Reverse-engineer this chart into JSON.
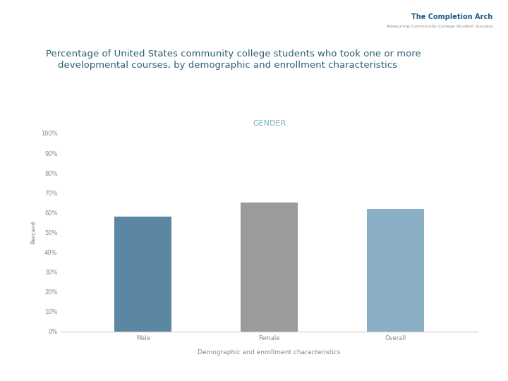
{
  "title": "GENDER",
  "title_color": "#7ab0c0",
  "categories": [
    "Male",
    "Female",
    "Overall"
  ],
  "values": [
    58,
    65,
    62
  ],
  "bar_colors": [
    "#5b87a3",
    "#9b9b9b",
    "#8aafc4"
  ],
  "ylabel": "Percent",
  "xlabel": "Demographic and enrollment characteristics",
  "ylim": [
    0,
    100
  ],
  "yticks": [
    0,
    10,
    20,
    30,
    40,
    50,
    60,
    70,
    80,
    90,
    100
  ],
  "ytick_labels": [
    "0%",
    "10%",
    "20%",
    "30%",
    "40%",
    "50%",
    "60%",
    "70%",
    "80%",
    "90%",
    "100%"
  ],
  "background_color": "#ffffff",
  "title_fontsize": 8,
  "axis_label_fontsize": 6.5,
  "tick_fontsize": 6,
  "bar_width": 0.45,
  "main_title_line1": "Percentage of United States community college students who took one or more",
  "main_title_line2": "    developmental courses, by demographic and enrollment characteristics",
  "main_title_fontsize": 9.5,
  "main_title_color": "#2b5f7a",
  "logo_line1": "The Completion Arch",
  "logo_line2": "Measuring Community College Student Success",
  "logo_color": "#1a5a8a",
  "logo_sub_color": "#888888"
}
